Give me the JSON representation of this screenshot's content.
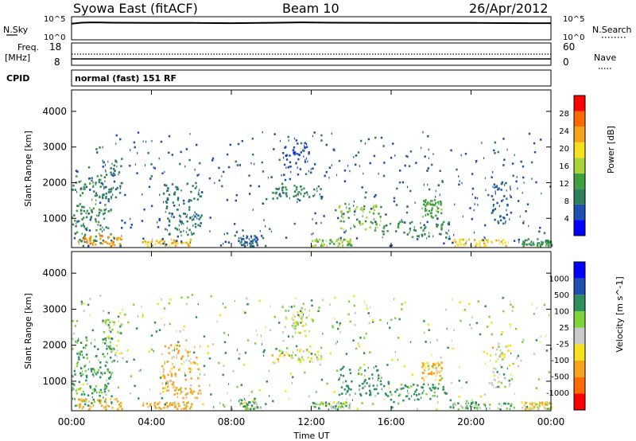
{
  "header": {
    "station": "Syowa East (fitACF)",
    "beam": "Beam 10",
    "date": "26/Apr/2012"
  },
  "noise_panel": {
    "left_label": "N.Sky",
    "right_label": "N.Search",
    "top_tick": "10^5",
    "bottom_tick": "10^0",
    "right_top_tick": "10^5",
    "right_bottom_tick": "10^0"
  },
  "freq_panel": {
    "left_label_line1": "Freq.",
    "left_label_line2": "[MHz]",
    "left_ticks": [
      "18",
      "8"
    ],
    "right_label": "Nave",
    "right_ticks": [
      "60",
      "0"
    ]
  },
  "cpid": {
    "label": "CPID",
    "value": "normal (fast) 151 RF"
  },
  "x_axis": {
    "label": "Time UT",
    "ticks": [
      "00:00",
      "04:00",
      "08:00",
      "12:00",
      "16:00",
      "20:00",
      "00:00"
    ]
  },
  "colors": {
    "power_scale": [
      "#0000ff",
      "#1f4fb0",
      "#2f7f5f",
      "#3fa040",
      "#a7d53a",
      "#f5e21c",
      "#f5a31c",
      "#ff6a00",
      "#ff0000"
    ],
    "velocity_scale": [
      "#ff0000",
      "#ff6a00",
      "#f5a31c",
      "#f5e21c",
      "#c9c9c9",
      "#7fd43a",
      "#2f8f5f",
      "#1f4fb0",
      "#0000ff"
    ]
  },
  "chart_data": [
    {
      "type": "line",
      "name": "noise",
      "x_range": [
        0,
        24
      ],
      "y_scale": "log",
      "y_range": [
        1,
        100000
      ],
      "series": [
        {
          "x": [
            0,
            0.5,
            1,
            2,
            4,
            6,
            8,
            10,
            11.5,
            12,
            13,
            16,
            20,
            23,
            24
          ],
          "y": [
            3000,
            5000,
            6000,
            5000,
            4500,
            4500,
            4000,
            4800,
            6000,
            5500,
            5000,
            4500,
            4500,
            4000,
            4000
          ]
        }
      ]
    },
    {
      "type": "scatter",
      "name": "frequency-nave",
      "x_range": [
        0,
        24
      ],
      "left_axis": {
        "range": [
          8,
          18
        ],
        "ticks": [
          18,
          8
        ]
      },
      "right_axis": {
        "range": [
          0,
          60
        ],
        "ticks": [
          60,
          0
        ]
      },
      "series": [
        {
          "x": [
            0,
            24
          ],
          "y": [
            12.7,
            12.7
          ]
        }
      ]
    },
    {
      "type": "heatmap",
      "ylabel": "Slant Range [km]",
      "ylim": [
        180,
        4600
      ],
      "yticks": [
        1000,
        2000,
        3000,
        4000
      ],
      "colorbar": {
        "label": "Power [dB]",
        "ticks": [
          "28",
          "24",
          "20",
          "16",
          "12",
          "8",
          "4"
        ],
        "range": [
          0,
          30
        ]
      },
      "regions": [
        {
          "t": [
            0,
            2
          ],
          "r": [
            300,
            2200
          ],
          "v": 10
        },
        {
          "t": [
            0.3,
            2.5
          ],
          "r": [
            200,
            500
          ],
          "v": 22
        },
        {
          "t": [
            1.5,
            2.5
          ],
          "r": [
            1500,
            2700
          ],
          "v": 8
        },
        {
          "t": [
            3.5,
            6
          ],
          "r": [
            200,
            400
          ],
          "v": 20
        },
        {
          "t": [
            4.5,
            6.5
          ],
          "r": [
            500,
            2000
          ],
          "v": 8
        },
        {
          "t": [
            8.3,
            9.3
          ],
          "r": [
            200,
            500
          ],
          "v": 6
        },
        {
          "t": [
            10,
            12.5
          ],
          "r": [
            1500,
            1900
          ],
          "v": 9
        },
        {
          "t": [
            10.5,
            12
          ],
          "r": [
            2200,
            3100
          ],
          "v": 5
        },
        {
          "t": [
            12,
            14
          ],
          "r": [
            200,
            400
          ],
          "v": 14
        },
        {
          "t": [
            13.3,
            15.5
          ],
          "r": [
            600,
            1400
          ],
          "v": 13
        },
        {
          "t": [
            15.5,
            19
          ],
          "r": [
            400,
            900
          ],
          "v": 10
        },
        {
          "t": [
            17.5,
            18.5
          ],
          "r": [
            1000,
            1500
          ],
          "v": 12
        },
        {
          "t": [
            19,
            22
          ],
          "r": [
            200,
            400
          ],
          "v": 20
        },
        {
          "t": [
            21,
            22
          ],
          "r": [
            800,
            2000
          ],
          "v": 6
        },
        {
          "t": [
            22.5,
            24
          ],
          "r": [
            200,
            400
          ],
          "v": 10
        },
        {
          "t": [
            0,
            24
          ],
          "r": [
            200,
            3400
          ],
          "v": 6
        }
      ]
    },
    {
      "type": "heatmap",
      "ylabel": "Slant Range [km]",
      "ylim": [
        180,
        4600
      ],
      "yticks": [
        1000,
        2000,
        3000,
        4000
      ],
      "colorbar": {
        "label": "Velocity [m s^-1]",
        "ticks": [
          "1000",
          "500",
          "100",
          "25",
          "-25",
          "-100",
          "-500",
          "-1000"
        ],
        "range": [
          -1000,
          1000
        ]
      },
      "regions": [
        {
          "t": [
            0,
            2
          ],
          "r": [
            300,
            2200
          ],
          "v": 150
        },
        {
          "t": [
            0.3,
            2.5
          ],
          "r": [
            200,
            500
          ],
          "v": -200
        },
        {
          "t": [
            1.5,
            2.5
          ],
          "r": [
            1500,
            2700
          ],
          "v": 50
        },
        {
          "t": [
            3.5,
            6
          ],
          "r": [
            200,
            400
          ],
          "v": -300
        },
        {
          "t": [
            4.5,
            6.5
          ],
          "r": [
            500,
            2000
          ],
          "v": -200
        },
        {
          "t": [
            8.3,
            9.3
          ],
          "r": [
            200,
            500
          ],
          "v": 60
        },
        {
          "t": [
            10,
            12.5
          ],
          "r": [
            1500,
            1900
          ],
          "v": 0
        },
        {
          "t": [
            10.5,
            12
          ],
          "r": [
            2200,
            3100
          ],
          "v": 0
        },
        {
          "t": [
            12,
            14
          ],
          "r": [
            200,
            400
          ],
          "v": 80
        },
        {
          "t": [
            13.3,
            15.5
          ],
          "r": [
            600,
            1400
          ],
          "v": 300
        },
        {
          "t": [
            15.5,
            19
          ],
          "r": [
            400,
            900
          ],
          "v": 200
        },
        {
          "t": [
            17.5,
            18.5
          ],
          "r": [
            1000,
            1500
          ],
          "v": -150
        },
        {
          "t": [
            19,
            22
          ],
          "r": [
            200,
            400
          ],
          "v": 120
        },
        {
          "t": [
            21,
            22
          ],
          "r": [
            800,
            2000
          ],
          "v": 0
        },
        {
          "t": [
            22.5,
            24
          ],
          "r": [
            200,
            400
          ],
          "v": -40
        },
        {
          "t": [
            0,
            24
          ],
          "r": [
            200,
            3400
          ],
          "v": 50
        }
      ]
    }
  ]
}
